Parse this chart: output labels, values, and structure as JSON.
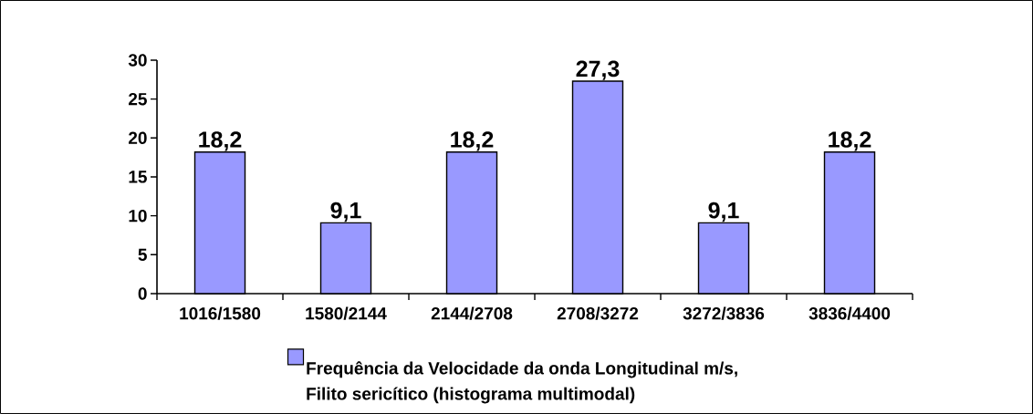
{
  "chart_data": {
    "type": "bar",
    "categories": [
      "1016/1580",
      "1580/2144",
      "2144/2708",
      "2708/3272",
      "3272/3836",
      "3836/4400"
    ],
    "series": [
      {
        "name": "Frequência da Velocidade da onda Longitudinal m/s, Filito sericítico (histograma multimodal)",
        "color": "#9999ff",
        "values": [
          18.2,
          9.1,
          18.2,
          27.3,
          9.1,
          18.2
        ],
        "value_labels": [
          "18,2",
          "9,1",
          "18,2",
          "27,3",
          "9,1",
          "18,2"
        ]
      }
    ],
    "ylim": [
      0,
      30
    ],
    "yticks": [
      0,
      5,
      10,
      15,
      20,
      25,
      30
    ],
    "legend": "bottom"
  }
}
